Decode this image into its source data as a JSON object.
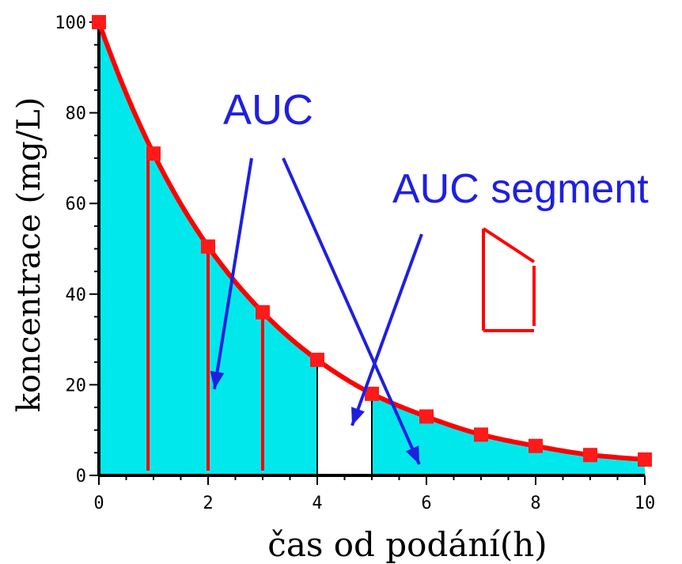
{
  "colors": {
    "curve": "#ff0000",
    "marker": "#ff1a1a",
    "fill": "#00e8ec",
    "annotation": "#1f1fe0",
    "axis": "#000000",
    "segment_divider": "#000000"
  },
  "chart_data": {
    "type": "area",
    "xlabel": "čas od podání(h)",
    "ylabel": "koncentrace (mg/L)",
    "xlim": [
      0,
      10
    ],
    "ylim": [
      0,
      100
    ],
    "x_ticks": [
      0,
      2,
      4,
      6,
      8,
      10
    ],
    "y_ticks": [
      0,
      20,
      40,
      60,
      80,
      100
    ],
    "x_minor_step": 0.5,
    "y_minor_step": 5,
    "grid": false,
    "series": [
      {
        "x": [
          0,
          1,
          2,
          3,
          4,
          5,
          6,
          7,
          8,
          9,
          10
        ],
        "values": [
          100,
          71,
          50.5,
          36,
          25.5,
          18,
          13,
          9,
          6.5,
          4.5,
          3.5
        ],
        "marker": "square",
        "line": "smooth",
        "filled_under": true
      }
    ],
    "red_verticals_x": [
      0.9,
      2,
      3
    ],
    "black_verticals_x": [
      4,
      5
    ],
    "unfilled_segment": [
      4,
      5
    ],
    "annotations": [
      {
        "text": "AUC",
        "color": "#1f1fe0"
      },
      {
        "text": "AUC segment",
        "color": "#1f1fe0"
      }
    ]
  }
}
